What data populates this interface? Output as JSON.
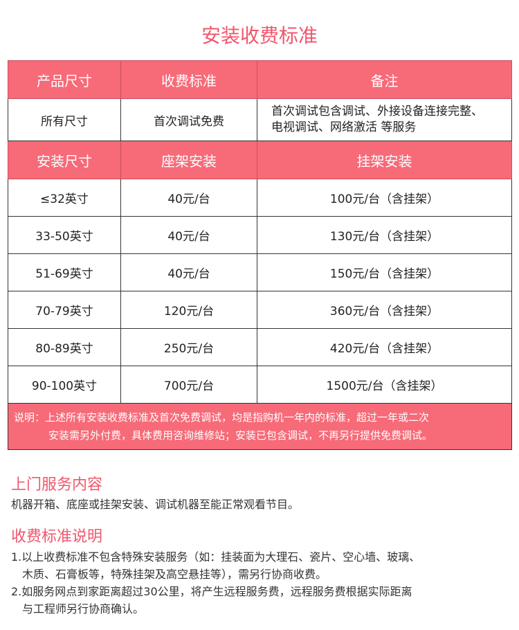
{
  "title": "安装收费标准",
  "table": {
    "header1": [
      "产品尺寸",
      "收费标准",
      "备注"
    ],
    "row1": [
      "所有尺寸",
      "首次调试免费",
      "首次调试包含调试、外接设备连接完整、",
      "电视调试、网络激活 等服务"
    ],
    "header2": [
      "安装尺寸",
      "座架安装",
      "挂架安装"
    ],
    "rows": [
      [
        "≤32英寸",
        "40元/台",
        "100元/台（含挂架）"
      ],
      [
        "33-50英寸",
        "40元/台",
        "130元/台（含挂架）"
      ],
      [
        "51-69英寸",
        "40元/台",
        "150元/台（含挂架）"
      ],
      [
        "70-79英寸",
        "120元/台",
        "360元/台（含挂架）"
      ],
      [
        "80-89英寸",
        "250元/台",
        "420元/台（含挂架）"
      ],
      [
        "90-100英寸",
        "700元/台",
        "1500元/台（含挂架）"
      ]
    ],
    "note": [
      "说明：上述所有安装收费标准及首次免费调试，均是指购机一年内的标准，超过一年或二次",
      "安装需另外付费，具体费用咨询维修站；安装已包含调试，不再另行提供免费调试。"
    ]
  },
  "service": {
    "title": "上门服务内容",
    "text": "机器开箱、底座或挂架安装、调试机器至能正常观看节目。"
  },
  "fees": {
    "title": "收费标准说明",
    "lines": [
      "1.以上收费标准不包含特殊安装服务（如：挂装面为大理石、瓷片、空心墙、玻璃、",
      "木质、石膏板等，特殊挂架及高空悬挂等），需另行协商收费。",
      "2.如服务网点到家距离超过30公里，将产生远程服务费，远程服务费根据实际距离",
      "与工程师另行协商确认。"
    ]
  },
  "colors": {
    "accent": "#f76a78",
    "title": "#f0566c"
  }
}
